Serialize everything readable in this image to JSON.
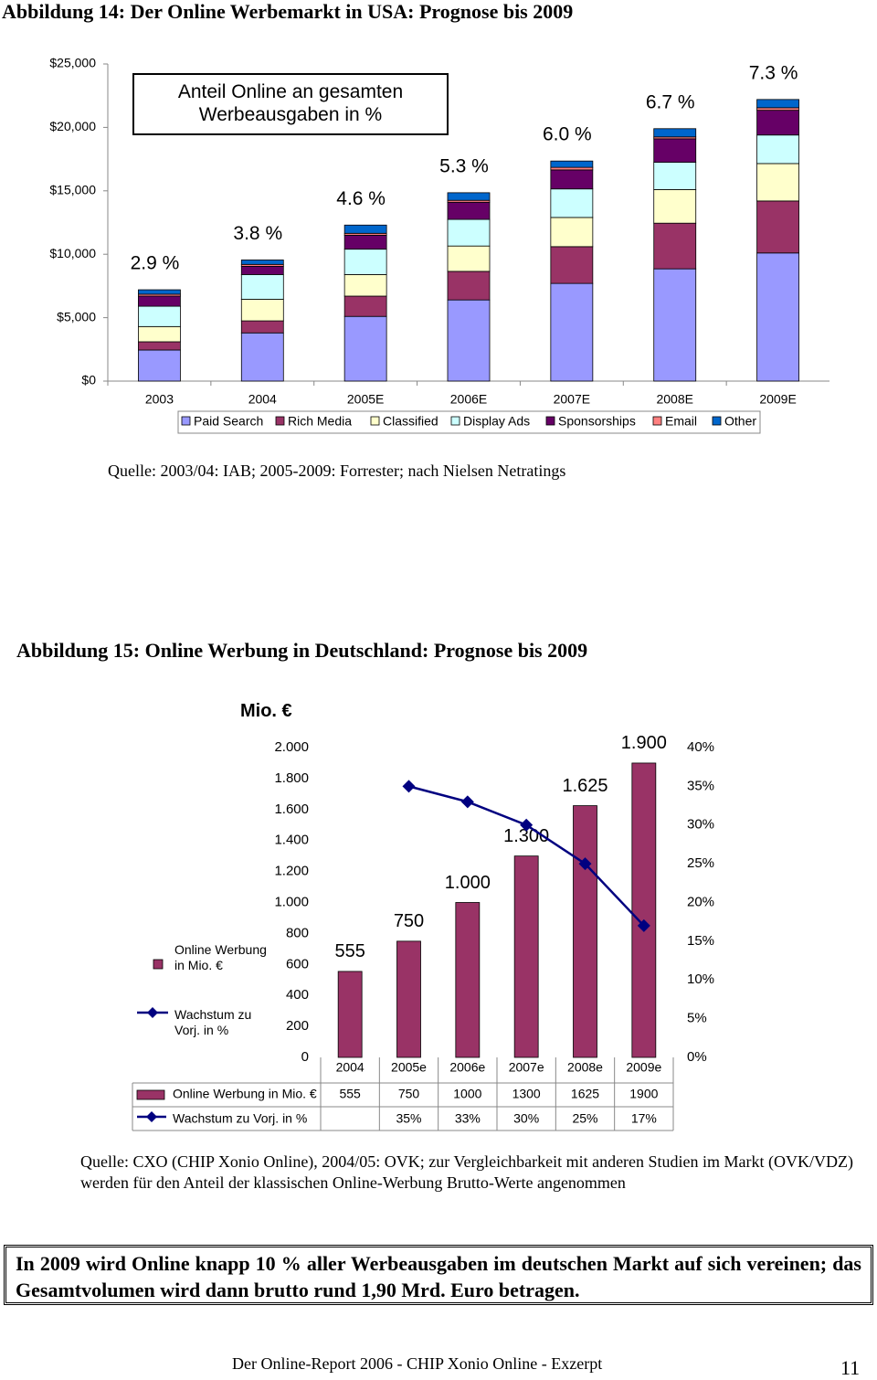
{
  "heading14": "Abbildung 14: Der Online Werbemarkt in USA: Prognose bis 2009",
  "source14": "Quelle: 2003/04: IAB; 2005-2009: Forrester; nach Nielsen Netratings",
  "heading15": "Abbildung 15: Online Werbung in Deutschland: Prognose bis 2009",
  "source15": "Quelle: CXO (CHIP Xonio Online), 2004/05: OVK; zur Vergleichbarkeit mit anderen Studien im Markt (OVK/VDZ) werden für den Anteil der klassischen Online-Werbung Brutto-Werte angenommen",
  "summary": "In 2009 wird Online knapp 10 % aller Werbeausgaben im deutschen Markt auf sich vereinen; das Gesamtvolumen wird dann brutto rund 1,90 Mrd. Euro betragen.",
  "footer": "Der Online-Report 2006 - CHIP Xonio Online - Exzerpt",
  "page_number": "11",
  "chart_data": [
    {
      "type": "stacked-bar",
      "annotation_box": "Anteil Online an gesamten Werbeausgaben in %",
      "categories": [
        "2003",
        "2004",
        "2005E",
        "2006E",
        "2007E",
        "2008E",
        "2009E"
      ],
      "annotations": [
        "2.9 %",
        "3.8 %",
        "4.6 %",
        "5.3 %",
        "6.0 %",
        "6.7 %",
        "7.3 %"
      ],
      "series": [
        {
          "name": "Paid Search",
          "color": "#9999ff",
          "values": [
            2450,
            3800,
            5100,
            6400,
            7700,
            8850,
            10100
          ]
        },
        {
          "name": "Rich Media",
          "color": "#993366",
          "values": [
            650,
            950,
            1600,
            2250,
            2900,
            3600,
            4100
          ]
        },
        {
          "name": "Classified",
          "color": "#ffffcc",
          "values": [
            1200,
            1700,
            1700,
            2000,
            2300,
            2650,
            2950
          ]
        },
        {
          "name": "Display Ads",
          "color": "#ccffff",
          "values": [
            1600,
            1950,
            2000,
            2100,
            2250,
            2150,
            2250
          ]
        },
        {
          "name": "Sponsorships",
          "color": "#660066",
          "values": [
            800,
            650,
            1100,
            1350,
            1500,
            1850,
            1950
          ]
        },
        {
          "name": "Email",
          "color": "#ff8080",
          "values": [
            150,
            150,
            150,
            150,
            200,
            150,
            200
          ]
        },
        {
          "name": "Other",
          "color": "#0066cc",
          "values": [
            350,
            350,
            650,
            600,
            500,
            650,
            650
          ]
        }
      ],
      "ylim": [
        0,
        25000
      ],
      "yticks": [
        {
          "value": 0,
          "label": "$0"
        },
        {
          "value": 5000,
          "label": "$5,000"
        },
        {
          "value": 10000,
          "label": "$10,000"
        },
        {
          "value": 15000,
          "label": "$15,000"
        },
        {
          "value": 20000,
          "label": "$20,000"
        },
        {
          "value": 25000,
          "label": "$25,000"
        }
      ],
      "grid": false
    },
    {
      "type": "bar-line",
      "y_label": "Mio. €",
      "categories": [
        "2004",
        "2005e",
        "2006e",
        "2007e",
        "2008e",
        "2009e"
      ],
      "series": [
        {
          "name": "Online Werbung in Mio. €",
          "color": "#993366",
          "values": [
            555,
            750,
            1000,
            1300,
            1625,
            1900
          ],
          "value_labels": [
            "555",
            "750",
            "1.000",
            "1.300",
            "1.625",
            "1.900"
          ]
        },
        {
          "name": "Wachstum zu Vorj. in %",
          "color": "#000080",
          "axis": "y2",
          "values": [
            null,
            35,
            33,
            30,
            25,
            17
          ],
          "value_labels": [
            null,
            "35%",
            "33%",
            "30%",
            "25%",
            "17%"
          ]
        }
      ],
      "ylim": [
        0,
        2000
      ],
      "yticks": [
        0,
        200,
        400,
        600,
        800,
        {
          "value": 1000,
          "label": "1.000"
        },
        {
          "value": 1200,
          "label": "1.200"
        },
        {
          "value": 1400,
          "label": "1.400"
        },
        {
          "value": 1600,
          "label": "1.600"
        },
        {
          "value": 1800,
          "label": "1.800"
        },
        {
          "value": 2000,
          "label": "2.000"
        }
      ],
      "y2lim": [
        0,
        40
      ],
      "y2ticks": [
        {
          "value": 0,
          "label": "0%"
        },
        {
          "value": 5,
          "label": "5%"
        },
        {
          "value": 10,
          "label": "10%"
        },
        {
          "value": 15,
          "label": "15%"
        },
        {
          "value": 20,
          "label": "20%"
        },
        {
          "value": 25,
          "label": "25%"
        },
        {
          "value": 30,
          "label": "30%"
        },
        {
          "value": 35,
          "label": "35%"
        },
        {
          "value": 40,
          "label": "40%"
        }
      ],
      "grid": false
    }
  ]
}
